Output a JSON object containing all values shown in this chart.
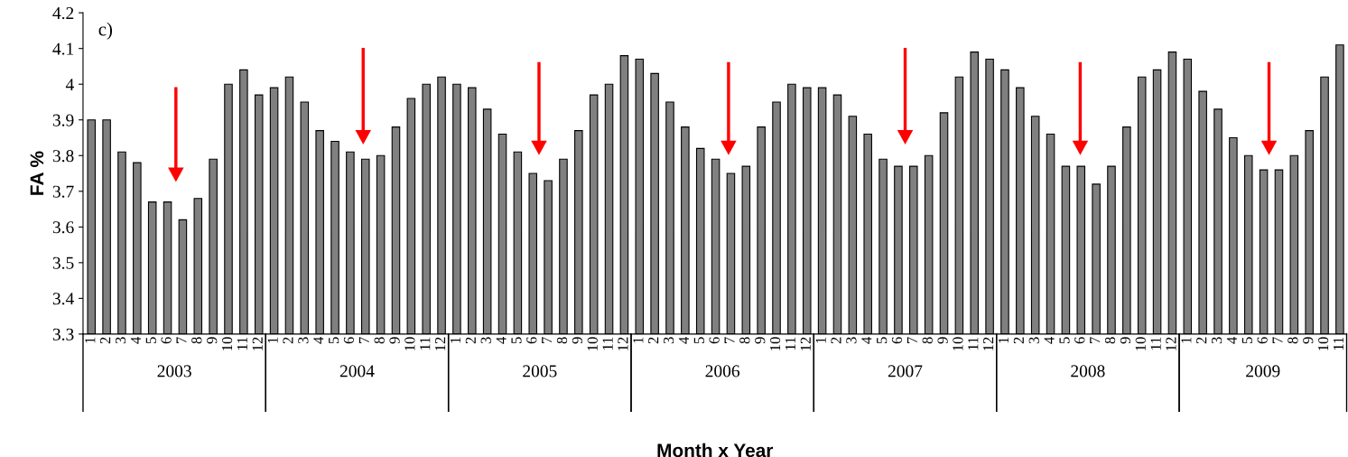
{
  "chart_data": {
    "type": "bar",
    "xlabel": "Month x Year",
    "ylabel": "FA %",
    "categories": [
      "1",
      "2",
      "3",
      "4",
      "5",
      "6",
      "7",
      "8",
      "9",
      "10",
      "11",
      "12",
      "1",
      "2",
      "3",
      "4",
      "5",
      "6",
      "7",
      "8",
      "9",
      "10",
      "11",
      "12",
      "1",
      "2",
      "3",
      "4",
      "5",
      "6",
      "7",
      "8",
      "9",
      "10",
      "11",
      "12",
      "1",
      "2",
      "3",
      "4",
      "5",
      "6",
      "7",
      "8",
      "9",
      "10",
      "11",
      "12",
      "1",
      "2",
      "3",
      "4",
      "5",
      "6",
      "7",
      "8",
      "9",
      "10",
      "11",
      "12",
      "1",
      "2",
      "3",
      "4",
      "5",
      "6",
      "7",
      "8",
      "9",
      "10",
      "11",
      "12",
      "1",
      "2",
      "3",
      "4",
      "5",
      "6",
      "7",
      "8",
      "9",
      "10",
      "11"
    ],
    "values": [
      3.9,
      3.9,
      3.81,
      3.78,
      3.67,
      3.67,
      3.62,
      3.68,
      3.79,
      4.0,
      4.04,
      3.97,
      3.99,
      4.02,
      3.95,
      3.87,
      3.84,
      3.81,
      3.79,
      3.8,
      3.88,
      3.96,
      4.0,
      4.02,
      4.0,
      3.99,
      3.93,
      3.86,
      3.81,
      3.75,
      3.73,
      3.79,
      3.87,
      3.97,
      4.0,
      4.08,
      4.07,
      4.03,
      3.95,
      3.88,
      3.82,
      3.79,
      3.75,
      3.77,
      3.88,
      3.95,
      4.0,
      3.99,
      3.99,
      3.97,
      3.91,
      3.86,
      3.79,
      3.77,
      3.77,
      3.8,
      3.92,
      4.02,
      4.09,
      4.07,
      4.04,
      3.99,
      3.91,
      3.86,
      3.77,
      3.77,
      3.72,
      3.77,
      3.88,
      4.02,
      4.04,
      4.09,
      4.07,
      3.98,
      3.93,
      3.85,
      3.8,
      3.76,
      3.76,
      3.8,
      3.87,
      4.02,
      4.11
    ],
    "color": "#808080",
    "ylim": [
      3.3,
      4.2
    ],
    "yticks": [
      3.3,
      3.4,
      3.5,
      3.6,
      3.7,
      3.8,
      3.9,
      4,
      4.1,
      4.2
    ],
    "annotations": [
      "c)",
      "2003",
      "2004",
      "2005",
      "2006",
      "2007",
      "2008",
      "2009"
    ],
    "grid": false
  }
}
